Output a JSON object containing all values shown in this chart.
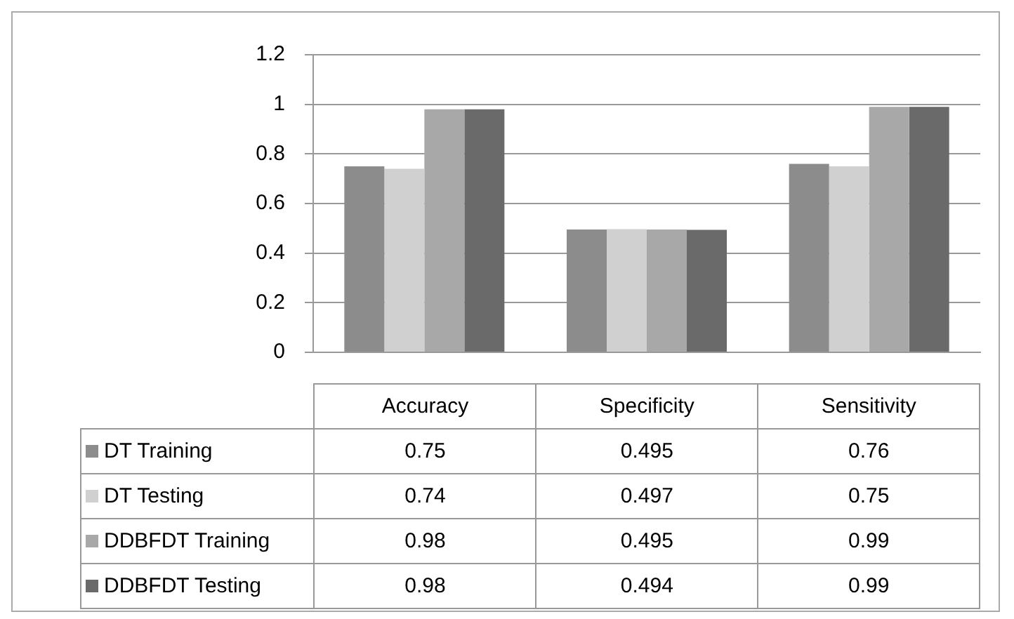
{
  "chart_data": {
    "type": "bar",
    "categories": [
      "Accuracy",
      "Specificity",
      "Sensitivity"
    ],
    "series": [
      {
        "name": "DT Training",
        "color": "#8c8c8c",
        "values": [
          0.75,
          0.495,
          0.76
        ]
      },
      {
        "name": "DT Testing",
        "color": "#d0d0d0",
        "values": [
          0.74,
          0.497,
          0.75
        ]
      },
      {
        "name": "DDBFDT Training",
        "color": "#a8a8a8",
        "values": [
          0.98,
          0.495,
          0.99
        ]
      },
      {
        "name": "DDBFDT Testing",
        "color": "#6a6a6a",
        "values": [
          0.98,
          0.494,
          0.99
        ]
      }
    ],
    "ylim": [
      0,
      1.2
    ],
    "yticks": [
      0,
      0.2,
      0.4,
      0.6,
      0.8,
      1,
      1.2
    ],
    "grid": "y",
    "legend": "bottom",
    "data_labels": true
  }
}
